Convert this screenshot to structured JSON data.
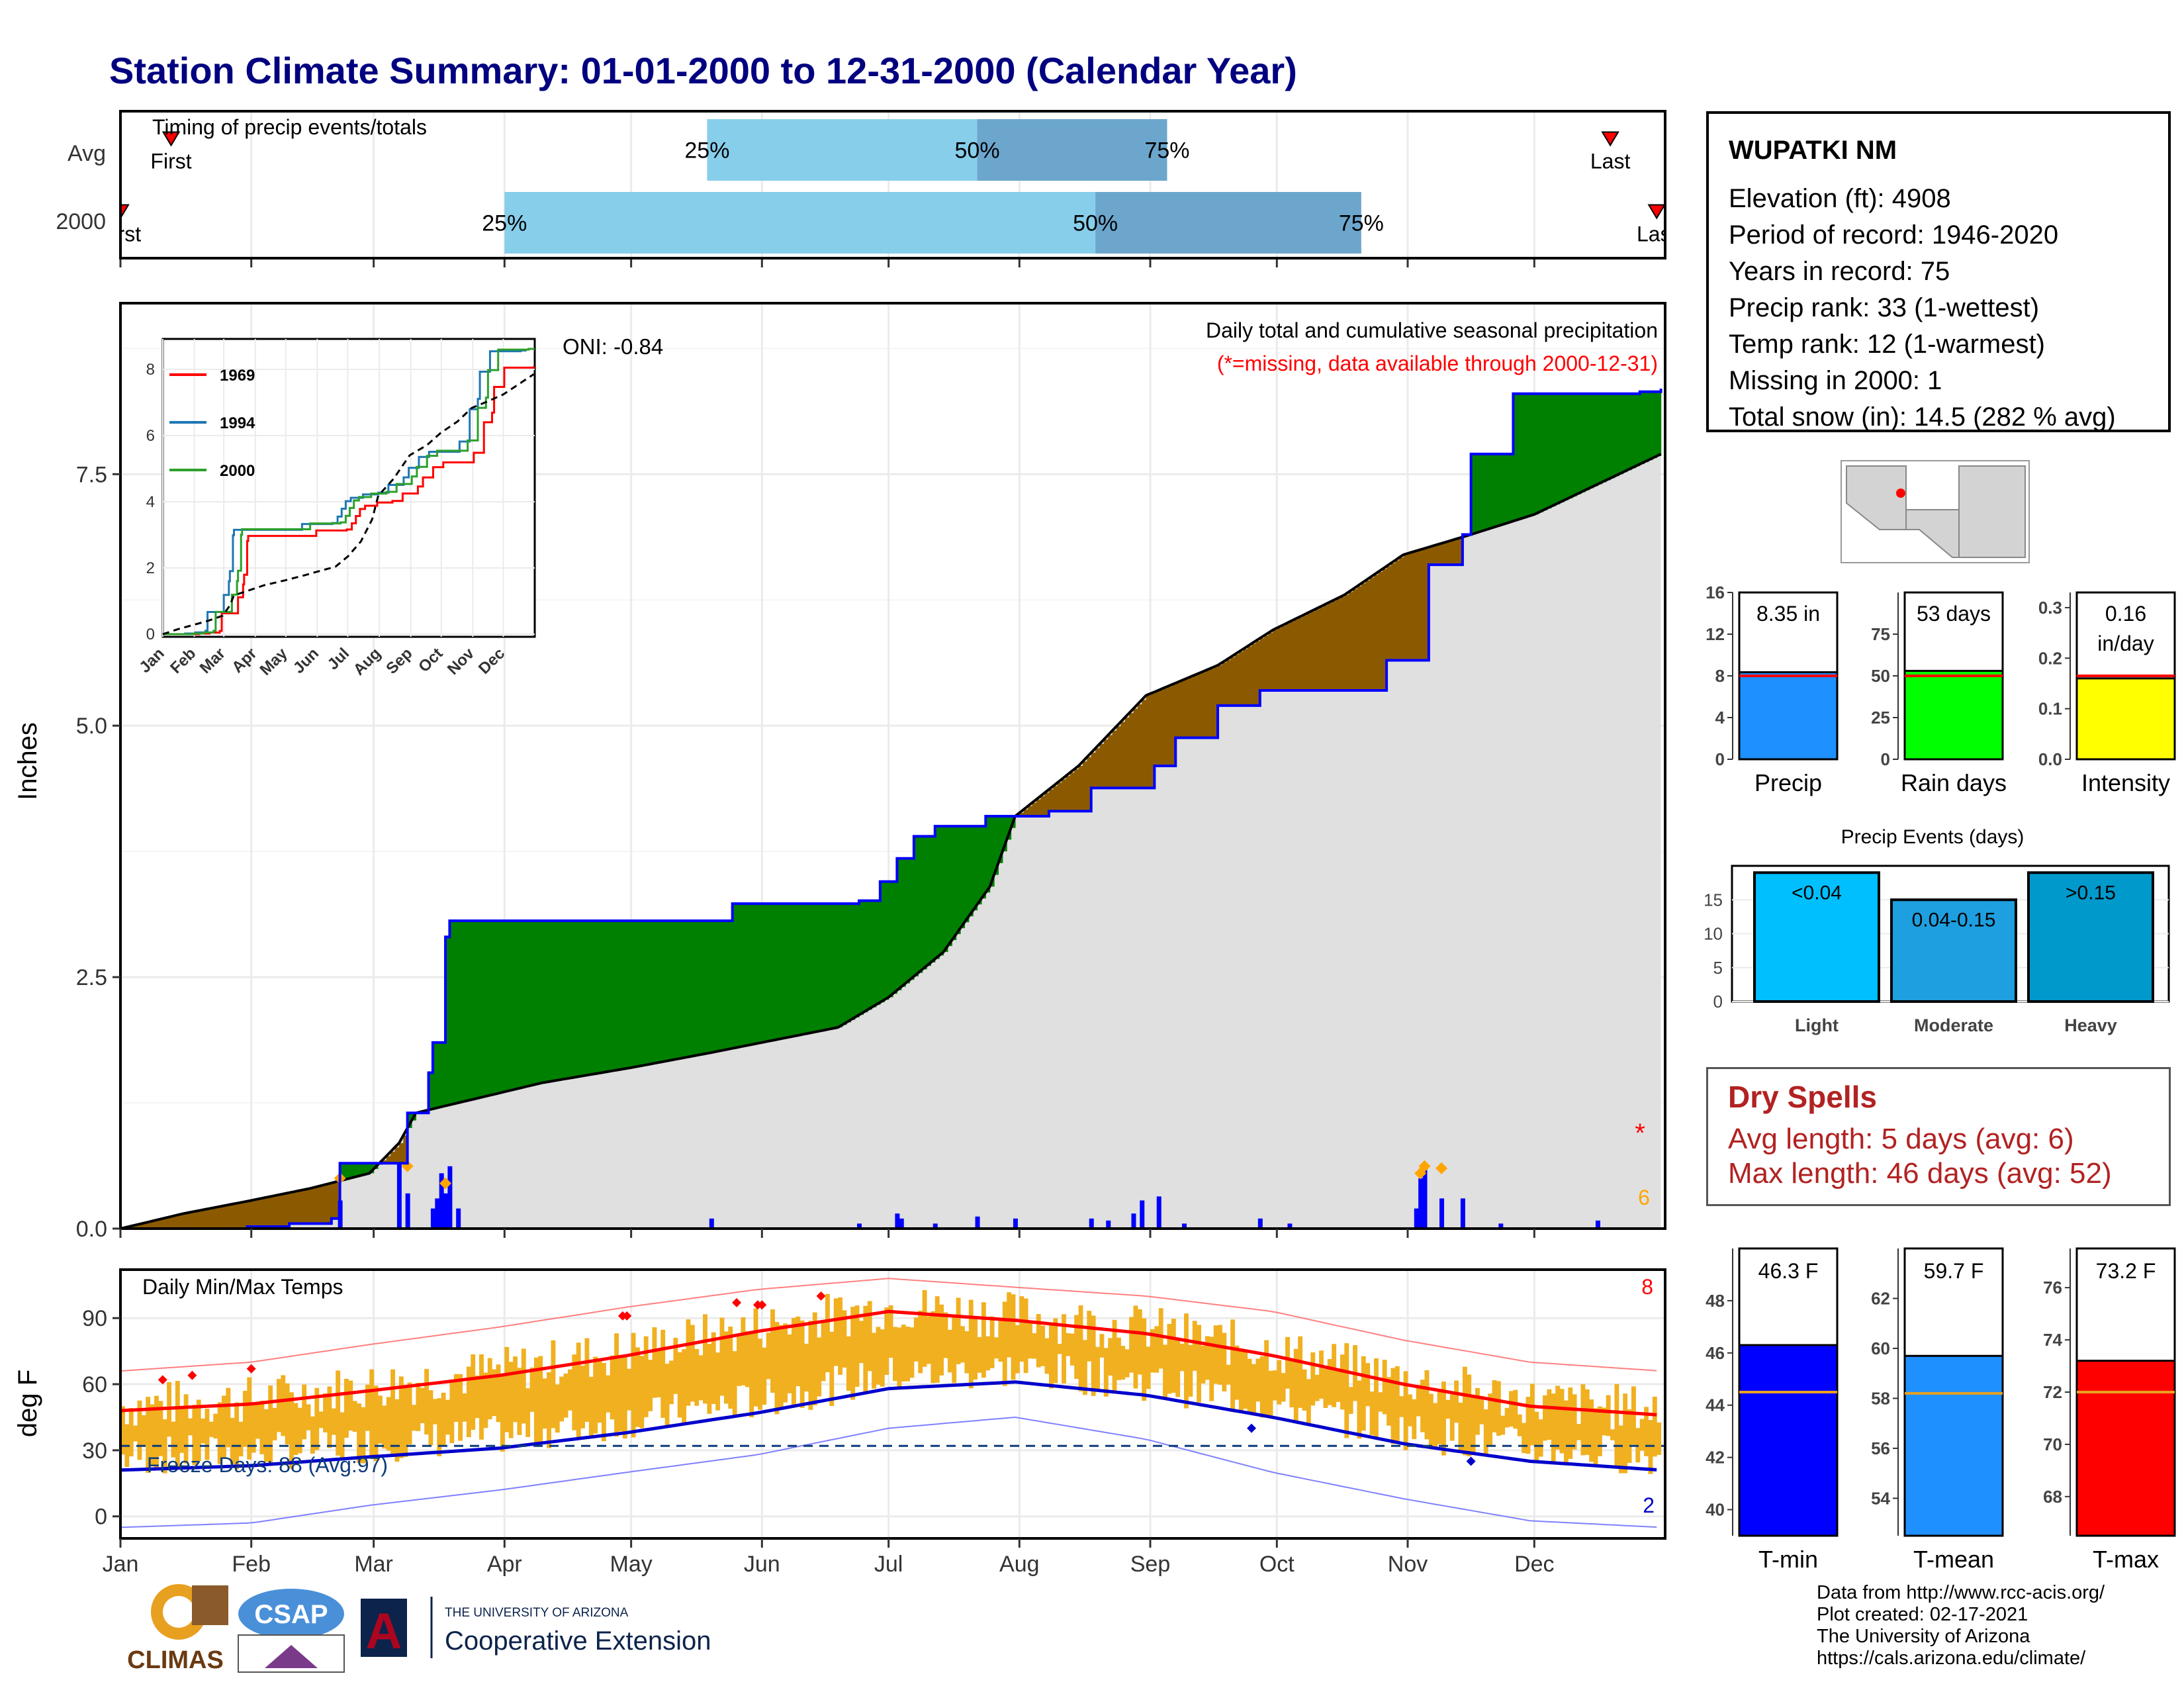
{
  "title": "Station Climate Summary: 01-01-2000 to 12-31-2000 (Calendar Year)",
  "colors": {
    "title": "#000080",
    "green_surplus": "#008000",
    "brown_deficit": "#8B5A00",
    "cumulative_line": "#0000ff",
    "normal_fill": "#e0e0e0",
    "daily_bar": "#0000ff",
    "temp_bar": "#f0b020",
    "tmax_line": "#ff0000",
    "tmin_line": "#0000cc",
    "light_blue": "#87ceeb",
    "mid_blue": "#6ca6cd",
    "dry_spell": "#b22222"
  },
  "timing": {
    "title": "Timing of precip events/totals",
    "rows": [
      "Avg",
      "2000"
    ],
    "avg": {
      "p25_label": "25%",
      "p50_label": "50%",
      "p75_label": "75%",
      "first_label": "First",
      "last_label": "Last"
    },
    "y2000": {
      "p25_label": "25%",
      "p50_label": "50%",
      "p75_label": "75%",
      "first_label": "First",
      "last_label": "Last"
    }
  },
  "precip_panel": {
    "ylabel": "Inches",
    "yticks": [
      "0.0",
      "2.5",
      "5.0",
      "7.5"
    ],
    "oni": "ONI: -0.84",
    "subtitle": "Daily total and cumulative seasonal precipitation",
    "missing_note": "(*=missing, data available through 2000-12-31)",
    "missing_marker": "*",
    "missing_count": "6"
  },
  "inset": {
    "yticks": [
      "0",
      "2",
      "4",
      "6",
      "8"
    ],
    "xticks": [
      "Jan",
      "Feb",
      "Mar",
      "Apr",
      "May",
      "Jun",
      "Jul",
      "Aug",
      "Sep",
      "Oct",
      "Nov",
      "Dec"
    ],
    "legend": [
      {
        "name": "1969",
        "color": "#ff0000"
      },
      {
        "name": "1994",
        "color": "#1f77b4"
      },
      {
        "name": "2000",
        "color": "#2ca02c"
      }
    ]
  },
  "temp_panel": {
    "ylabel": "deg F",
    "title": "Daily Min/Max Temps",
    "yticks": [
      "0",
      "30",
      "60",
      "90"
    ],
    "freeze": "Freeze Days: 88 (Avg:97)",
    "record_high_count": "8",
    "record_low_count": "2"
  },
  "months": [
    "Jan",
    "Feb",
    "Mar",
    "Apr",
    "May",
    "Jun",
    "Jul",
    "Aug",
    "Sep",
    "Oct",
    "Nov",
    "Dec"
  ],
  "station": {
    "name": "WUPATKI NM",
    "lines": [
      "Elevation (ft): 4908",
      "Period of record: 1946-2020",
      "Years in record: 75",
      "Precip rank: 33 (1-wettest)",
      "Temp rank: 12 (1-warmest)",
      "Missing in 2000: 1",
      "Total snow (in): 14.5 (282 % avg)"
    ]
  },
  "summary_bars": [
    {
      "label": "Precip",
      "value_text": "8.35 in",
      "value": 8.35,
      "avg": 8.0,
      "ymax": 16,
      "yticks": [
        "0",
        "4",
        "8",
        "12",
        "16"
      ],
      "color": "#1e90ff"
    },
    {
      "label": "Rain days",
      "value_text": "53 days",
      "value": 53,
      "avg": 50,
      "ymax": 100,
      "yticks": [
        "0",
        "25",
        "50",
        "75"
      ],
      "color": "#00ff00"
    },
    {
      "label": "Intensity",
      "value_text": "0.16",
      "value_text2": "in/day",
      "value": 0.16,
      "avg": 0.165,
      "ymax": 0.33,
      "yticks": [
        "0.0",
        "0.1",
        "0.2",
        "0.3"
      ],
      "color": "#ffff00"
    }
  ],
  "events": {
    "title": "Precip Events (days)",
    "yticks": [
      "0",
      "5",
      "10",
      "15"
    ],
    "bars": [
      {
        "category": "Light",
        "label": "<0.04",
        "value": 19,
        "color": "#00bfff"
      },
      {
        "category": "Moderate",
        "label": "0.04-0.15",
        "value": 15,
        "color": "#1e9fdf"
      },
      {
        "category": "Heavy",
        "label": ">0.15",
        "value": 19,
        "color": "#0099cc"
      }
    ]
  },
  "dry_spells": {
    "title": "Dry Spells",
    "avg": "Avg length: 5 days (avg: 6)",
    "max": "Max length: 46 days (avg: 52)"
  },
  "temp_bars": [
    {
      "label": "T-min",
      "value_text": "46.3 F",
      "value": 46.3,
      "avg": 44.5,
      "ymin": 39,
      "ymax": 50,
      "yticks": [
        "40",
        "42",
        "44",
        "46",
        "48"
      ],
      "color": "#0000ff"
    },
    {
      "label": "T-mean",
      "value_text": "59.7 F",
      "value": 59.7,
      "avg": 58.2,
      "ymin": 52.5,
      "ymax": 64,
      "yticks": [
        "54",
        "56",
        "58",
        "60",
        "62"
      ],
      "color": "#1e90ff"
    },
    {
      "label": "T-max",
      "value_text": "73.2 F",
      "value": 73.2,
      "avg": 72.0,
      "ymin": 66.5,
      "ymax": 77.5,
      "yticks": [
        "68",
        "70",
        "72",
        "74",
        "76"
      ],
      "color": "#ff0000"
    }
  ],
  "credits": [
    "Data from http://www.rcc-acis.org/",
    "Plot created: 02-17-2021",
    "The University of Arizona",
    "https://cals.arizona.edu/climate/"
  ],
  "logos": {
    "climas": "CLIMAS",
    "csap": "CSAP",
    "ua_line1": "THE UNIVERSITY OF ARIZONA",
    "ua_line2": "Cooperative Extension"
  },
  "chart_data": {
    "type": "area",
    "cumulative_2000": [
      [
        0,
        0.0
      ],
      [
        30,
        0.02
      ],
      [
        40,
        0.05
      ],
      [
        50,
        0.1
      ],
      [
        52,
        0.65
      ],
      [
        66,
        0.65
      ],
      [
        68,
        1.15
      ],
      [
        73,
        1.55
      ],
      [
        74,
        1.85
      ],
      [
        77,
        2.9
      ],
      [
        78,
        3.06
      ],
      [
        140,
        3.06
      ],
      [
        145,
        3.23
      ],
      [
        155,
        3.23
      ],
      [
        175,
        3.26
      ],
      [
        180,
        3.45
      ],
      [
        184,
        3.68
      ],
      [
        188,
        3.9
      ],
      [
        193,
        4.0
      ],
      [
        205,
        4.1
      ],
      [
        220,
        4.15
      ],
      [
        230,
        4.38
      ],
      [
        245,
        4.6
      ],
      [
        250,
        4.88
      ],
      [
        260,
        5.2
      ],
      [
        270,
        5.35
      ],
      [
        300,
        5.65
      ],
      [
        308,
        5.65
      ],
      [
        310,
        6.6
      ],
      [
        314,
        6.6
      ],
      [
        318,
        6.9
      ],
      [
        320,
        7.7
      ],
      [
        330,
        8.3
      ],
      [
        360,
        8.32
      ],
      [
        365,
        8.35
      ]
    ],
    "cumulative_normal": [
      [
        0,
        0.0
      ],
      [
        15,
        0.15
      ],
      [
        31,
        0.28
      ],
      [
        45,
        0.4
      ],
      [
        59,
        0.55
      ],
      [
        66,
        0.85
      ],
      [
        70,
        1.15
      ],
      [
        100,
        1.45
      ],
      [
        121,
        1.6
      ],
      [
        140,
        1.75
      ],
      [
        152,
        1.85
      ],
      [
        170,
        2.0
      ],
      [
        182,
        2.3
      ],
      [
        195,
        2.75
      ],
      [
        206,
        3.4
      ],
      [
        212,
        4.1
      ],
      [
        227,
        4.6
      ],
      [
        243,
        5.3
      ],
      [
        260,
        5.6
      ],
      [
        273,
        5.95
      ],
      [
        290,
        6.3
      ],
      [
        304,
        6.7
      ],
      [
        320,
        6.9
      ],
      [
        335,
        7.1
      ],
      [
        350,
        7.4
      ],
      [
        365,
        7.7
      ]
    ],
    "daily_precip": [
      [
        52,
        0.28
      ],
      [
        66,
        0.65
      ],
      [
        68,
        0.35
      ],
      [
        74,
        0.2
      ],
      [
        75,
        0.3
      ],
      [
        76,
        0.55
      ],
      [
        77,
        0.35
      ],
      [
        78,
        0.62
      ],
      [
        80,
        0.2
      ],
      [
        140,
        0.1
      ],
      [
        175,
        0.05
      ],
      [
        184,
        0.15
      ],
      [
        185,
        0.1
      ],
      [
        193,
        0.05
      ],
      [
        203,
        0.12
      ],
      [
        212,
        0.1
      ],
      [
        230,
        0.1
      ],
      [
        234,
        0.08
      ],
      [
        240,
        0.15
      ],
      [
        242,
        0.28
      ],
      [
        246,
        0.32
      ],
      [
        252,
        0.05
      ],
      [
        270,
        0.1
      ],
      [
        277,
        0.05
      ],
      [
        307,
        0.2
      ],
      [
        308,
        0.5
      ],
      [
        309,
        0.6
      ],
      [
        313,
        0.3
      ],
      [
        318,
        0.3
      ],
      [
        327,
        0.05
      ],
      [
        350,
        0.08
      ]
    ],
    "timing_avg_pct": {
      "first": 12,
      "p25": 139,
      "p50": 203,
      "p75": 248,
      "last": 353
    },
    "timing_2000_pct": {
      "first": 0,
      "p25": 91,
      "p50": 231,
      "p75": 294,
      "last": 364
    },
    "tmax_normal": [
      [
        0,
        48
      ],
      [
        31,
        51
      ],
      [
        59,
        57
      ],
      [
        90,
        64
      ],
      [
        120,
        73
      ],
      [
        151,
        84
      ],
      [
        182,
        93
      ],
      [
        212,
        89
      ],
      [
        243,
        83
      ],
      [
        273,
        73
      ],
      [
        304,
        60
      ],
      [
        334,
        50
      ],
      [
        365,
        46
      ]
    ],
    "tmin_normal": [
      [
        0,
        21
      ],
      [
        31,
        23
      ],
      [
        59,
        27
      ],
      [
        90,
        31
      ],
      [
        120,
        38
      ],
      [
        151,
        47
      ],
      [
        182,
        58
      ],
      [
        212,
        61
      ],
      [
        243,
        55
      ],
      [
        273,
        45
      ],
      [
        304,
        33
      ],
      [
        334,
        25
      ],
      [
        365,
        21
      ]
    ],
    "record_high": [
      [
        0,
        66
      ],
      [
        31,
        70
      ],
      [
        59,
        78
      ],
      [
        90,
        86
      ],
      [
        120,
        95
      ],
      [
        151,
        103
      ],
      [
        182,
        108
      ],
      [
        212,
        104
      ],
      [
        243,
        100
      ],
      [
        273,
        93
      ],
      [
        304,
        80
      ],
      [
        334,
        70
      ],
      [
        365,
        66
      ]
    ],
    "record_low": [
      [
        0,
        -5
      ],
      [
        31,
        -3
      ],
      [
        59,
        5
      ],
      [
        90,
        12
      ],
      [
        120,
        20
      ],
      [
        151,
        28
      ],
      [
        182,
        40
      ],
      [
        212,
        45
      ],
      [
        243,
        35
      ],
      [
        273,
        20
      ],
      [
        304,
        8
      ],
      [
        334,
        -2
      ],
      [
        365,
        -5
      ]
    ]
  }
}
